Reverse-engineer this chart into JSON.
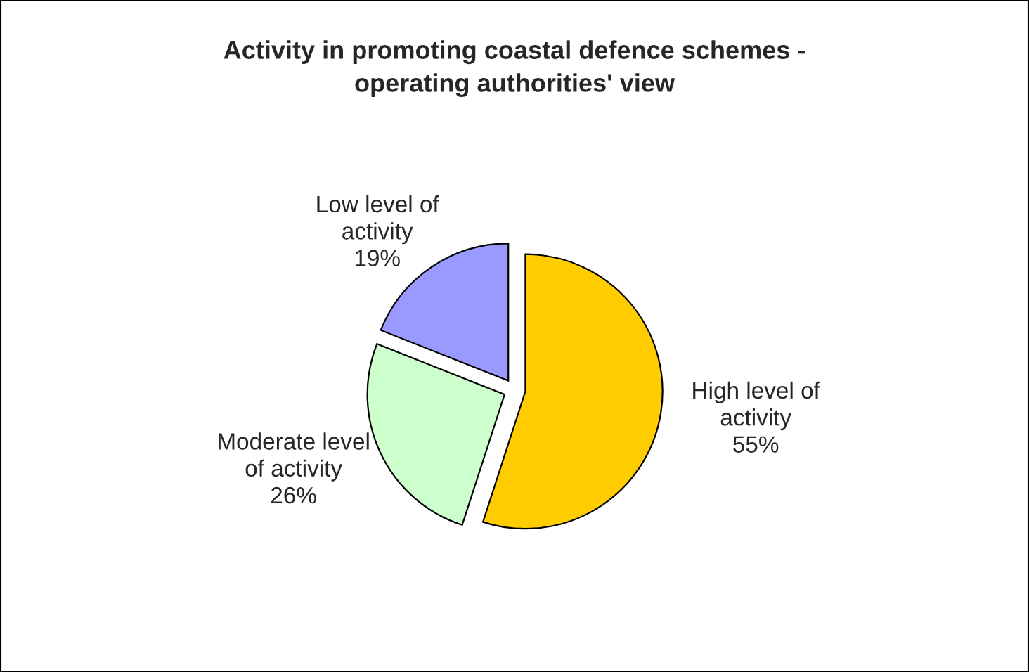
{
  "chart_data": {
    "type": "pie",
    "title": "Activity in promoting coastal defence schemes -\noperating authorities' view",
    "categories": [
      "High level of\nactivity",
      "Moderate level\nof activity",
      "Low level of\nactivity"
    ],
    "values": [
      55,
      26,
      19
    ],
    "colors": [
      "#ffcc00",
      "#ccffcc",
      "#9999ff"
    ],
    "value_labels": [
      "55%",
      "26%",
      "19%"
    ]
  }
}
